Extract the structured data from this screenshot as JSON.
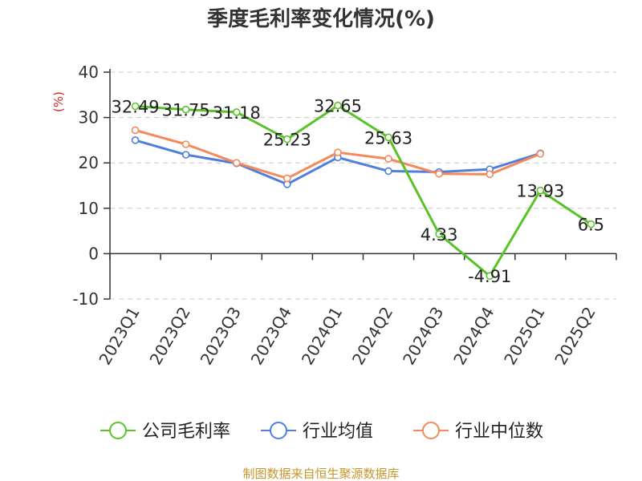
{
  "chart_data": {
    "type": "line",
    "title": "季度毛利率变化情况(%)",
    "ylabel": "(%)",
    "ylim": [
      -10,
      40
    ],
    "yticks": [
      40,
      30,
      20,
      10,
      0,
      -10
    ],
    "grid": true,
    "legend_position": "bottom",
    "categories": [
      "2023Q1",
      "2023Q2",
      "2023Q3",
      "2023Q4",
      "2024Q1",
      "2024Q2",
      "2024Q3",
      "2024Q4",
      "2025Q1",
      "2025Q2"
    ],
    "series": [
      {
        "name": "公司毛利率",
        "color": "#5ac229",
        "values": [
          32.49,
          31.75,
          31.18,
          25.23,
          32.65,
          25.63,
          4.33,
          -4.91,
          13.93,
          6.5
        ],
        "labels": [
          "32.49",
          "31.75",
          "31.18",
          "25.23",
          "32.65",
          "25.63",
          "4.33",
          "-4.91",
          "13.93",
          "6.5"
        ]
      },
      {
        "name": "行业均值",
        "color": "#4f7fdc",
        "values": [
          25.0,
          21.8,
          19.9,
          15.3,
          21.2,
          18.2,
          18.0,
          18.6,
          22.1,
          null
        ]
      },
      {
        "name": "行业中位数",
        "color": "#f4895a",
        "values": [
          27.2,
          24.1,
          20.0,
          16.6,
          22.3,
          20.9,
          17.6,
          17.5,
          22.0,
          null
        ]
      }
    ]
  },
  "source": "制图数据来自恒生聚源数据库"
}
